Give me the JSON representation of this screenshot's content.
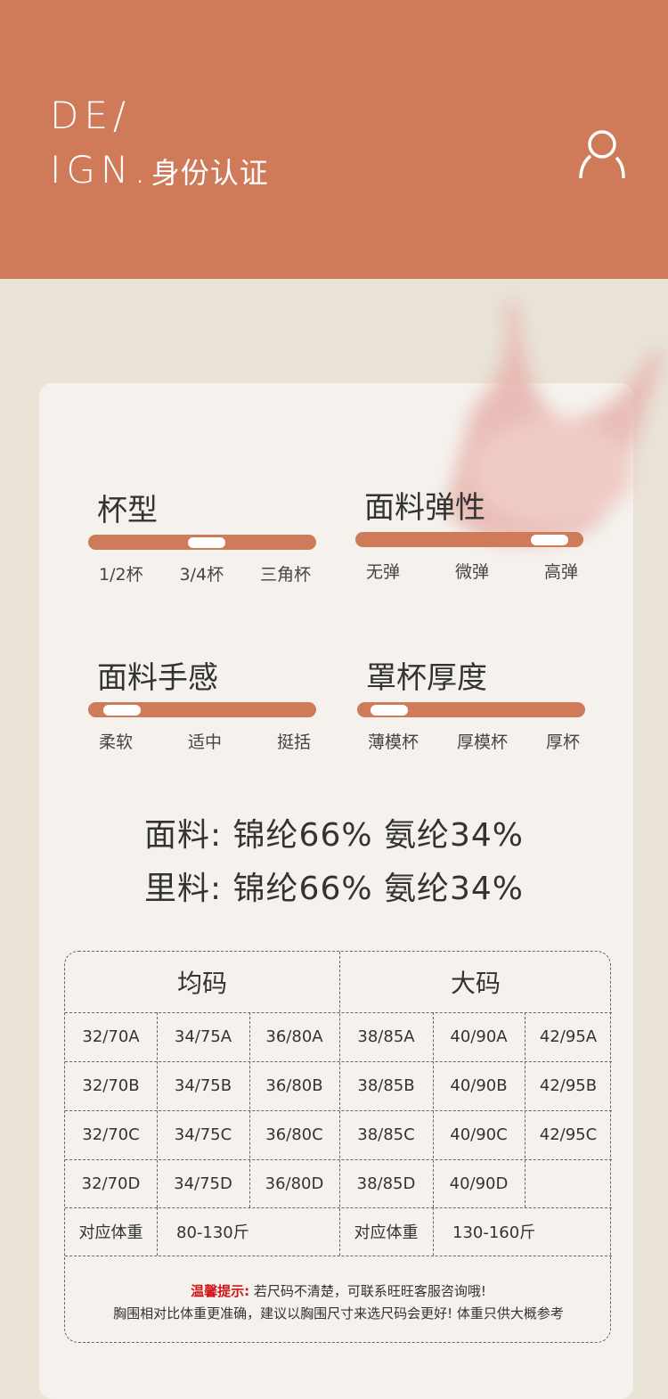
{
  "header": {
    "line1": "DE/",
    "line2": "IGN.",
    "title": "身份认证",
    "icon": "user-icon",
    "color": "#cf7a59"
  },
  "sliders": [
    {
      "title": "杯型",
      "labels": [
        "1/2杯",
        "3/4杯",
        "三角杯"
      ],
      "value": 0.52
    },
    {
      "title": "面料弹性",
      "labels": [
        "无弹",
        "微弹",
        "高弹"
      ],
      "value": 0.85
    },
    {
      "title": "面料手感",
      "labels": [
        "柔软",
        "适中",
        "挺括"
      ],
      "value": 0.15
    },
    {
      "title": "罩杯厚度",
      "labels": [
        "薄模杯",
        "厚模杯",
        "厚杯"
      ],
      "value": 0.14
    }
  ],
  "composition": {
    "outer": "面料: 锦纶66% 氨纶34%",
    "lining": "里料: 锦纶66% 氨纶34%"
  },
  "size_table": {
    "groups": [
      "均码",
      "大码"
    ],
    "rows": [
      [
        "32/70A",
        "34/75A",
        "36/80A",
        "38/85A",
        "40/90A",
        "42/95A"
      ],
      [
        "32/70B",
        "34/75B",
        "36/80B",
        "38/85B",
        "40/90B",
        "42/95B"
      ],
      [
        "32/70C",
        "34/75C",
        "36/80C",
        "38/85C",
        "40/90C",
        "42/95C"
      ],
      [
        "32/70D",
        "34/75D",
        "36/80D",
        "38/85D",
        "40/90D",
        ""
      ]
    ],
    "weight_label": "对应体重",
    "weight_regular": "80-130斤",
    "weight_large": "130-160斤",
    "tip_label": "温馨提示:",
    "tip_text": "若尺码不清楚，可联系旺旺客服咨询哦!",
    "tip_line2": "胸围相对比体重更准确，建议以胸围尺寸来选尺码会更好! 体重只供大概参考"
  }
}
